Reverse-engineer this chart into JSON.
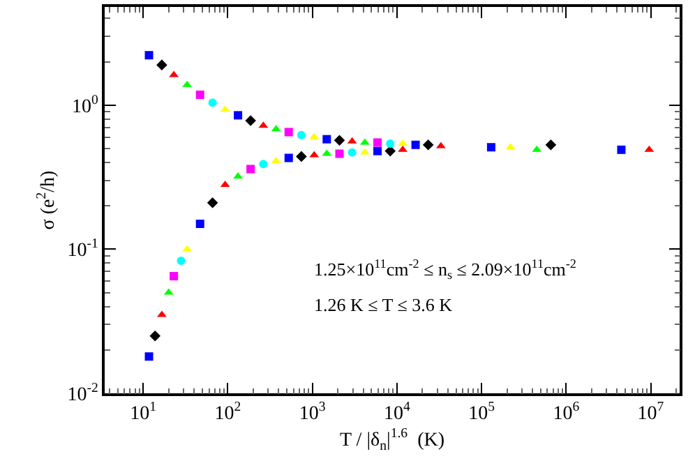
{
  "chart_data": {
    "type": "scatter",
    "xlabel": "T / |δ$_{n}$|$^{1.6}$  (K)",
    "ylabel": "σ (e$^{2}$/h)",
    "log": "xy",
    "grid": false,
    "xlim": [
      3.5,
      22000000
    ],
    "ylim": [
      0.01,
      4.8
    ],
    "xticks": [
      {
        "value": 10,
        "label": "10$^{1}$"
      },
      {
        "value": 100,
        "label": "10$^{2}$"
      },
      {
        "value": 1000,
        "label": "10$^{3}$"
      },
      {
        "value": 10000,
        "label": "10$^{4}$"
      },
      {
        "value": 100000,
        "label": "10$^{5}$"
      },
      {
        "value": 1000000,
        "label": "10$^{6}$"
      },
      {
        "value": 10000000,
        "label": "10$^{7}$"
      }
    ],
    "yticks": [
      {
        "value": 0.01,
        "label": "10$^{-2}$"
      },
      {
        "value": 0.1,
        "label": "10$^{-1}$"
      },
      {
        "value": 1,
        "label": "10$^{0}$"
      }
    ],
    "annotations": [
      "1.25×10$^{11}$cm$^{-2}$ ≤ n$_{s}$ ≤ 2.09×10$^{11}$cm$^{-2}$",
      "1.26 K ≤ T ≤ 3.6 K"
    ],
    "series": [
      {
        "color": "#000000",
        "marker": "diamond",
        "x": [
          16.6,
          186,
          2090,
          23400,
          660000,
          13.8,
          66,
          741,
          8320
        ],
        "values": [
          1.9,
          0.78,
          0.57,
          0.53,
          0.53,
          0.025,
          0.21,
          0.44,
          0.48
        ]
      },
      {
        "color": "#ff0000",
        "marker": "triangle",
        "x": [
          23,
          263,
          2950,
          33100,
          9600000,
          16.6,
          93,
          1050,
          11700
        ],
        "values": [
          1.62,
          0.72,
          0.56,
          0.52,
          0.49,
          0.035,
          0.28,
          0.45,
          0.49
        ]
      },
      {
        "color": "#00ff00",
        "marker": "triangle",
        "x": [
          33,
          372,
          4170,
          450000,
          20,
          132,
          1480
        ],
        "values": [
          1.38,
          0.68,
          0.55,
          0.49,
          0.05,
          0.32,
          0.46
        ]
      },
      {
        "color": "#0000ff",
        "marker": "square",
        "x": [
          11.7,
          132,
          1480,
          16600,
          130000,
          4500000,
          11.7,
          47,
          525,
          5890
        ],
        "values": [
          2.22,
          0.85,
          0.58,
          0.53,
          0.51,
          0.49,
          0.018,
          0.15,
          0.43,
          0.48
        ]
      },
      {
        "color": "#ff00ff",
        "marker": "square",
        "x": [
          47,
          525,
          5890,
          23,
          186,
          2090
        ],
        "values": [
          1.18,
          0.65,
          0.55,
          0.065,
          0.36,
          0.46
        ]
      },
      {
        "color": "#00ffff",
        "marker": "circle",
        "x": [
          66,
          741,
          8320,
          28,
          263,
          2950
        ],
        "values": [
          1.04,
          0.62,
          0.54,
          0.083,
          0.39,
          0.47
        ]
      },
      {
        "color": "#ffff00",
        "marker": "triangle",
        "x": [
          93,
          1050,
          11700,
          220000,
          33,
          372,
          4170
        ],
        "values": [
          0.93,
          0.6,
          0.54,
          0.51,
          0.1,
          0.41,
          0.47
        ]
      }
    ]
  }
}
